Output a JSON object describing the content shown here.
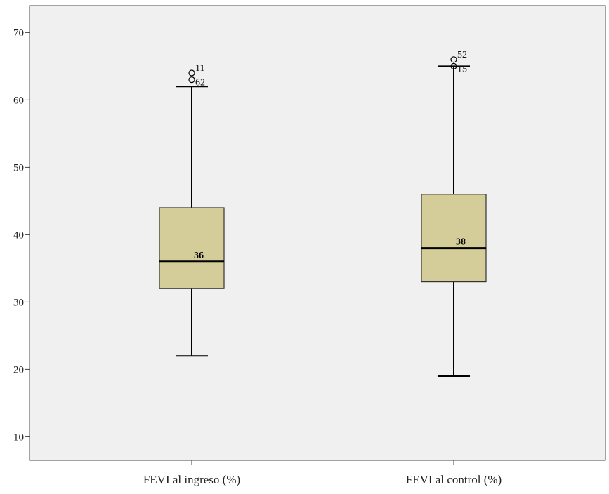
{
  "chart_data": {
    "type": "boxplot",
    "title": "",
    "xlabel": "",
    "ylabel": "",
    "ylim": [
      6.5,
      74
    ],
    "yticks": [
      10,
      20,
      30,
      40,
      50,
      60,
      70
    ],
    "grid": false,
    "categories": [
      "FEVI al ingreso (%)",
      "FEVI al control (%)"
    ],
    "boxes": [
      {
        "category": "FEVI al ingreso (%)",
        "whisker_low": 22,
        "q1": 32,
        "median": 36,
        "q3": 44,
        "whisker_high": 62,
        "median_label": "36",
        "outliers": [
          {
            "value": 64,
            "label": "11"
          },
          {
            "value": 63,
            "label": "62"
          }
        ]
      },
      {
        "category": "FEVI al control (%)",
        "whisker_low": 19,
        "q1": 33,
        "median": 38,
        "q3": 46,
        "whisker_high": 65,
        "median_label": "38",
        "outliers": [
          {
            "value": 66,
            "label": "52"
          },
          {
            "value": 65,
            "label": "15"
          }
        ]
      }
    ],
    "colors": {
      "plot_background": "#f0f0f0",
      "box_fill": "#d4cc99",
      "box_stroke": "#333333",
      "axis": "#444444"
    }
  }
}
